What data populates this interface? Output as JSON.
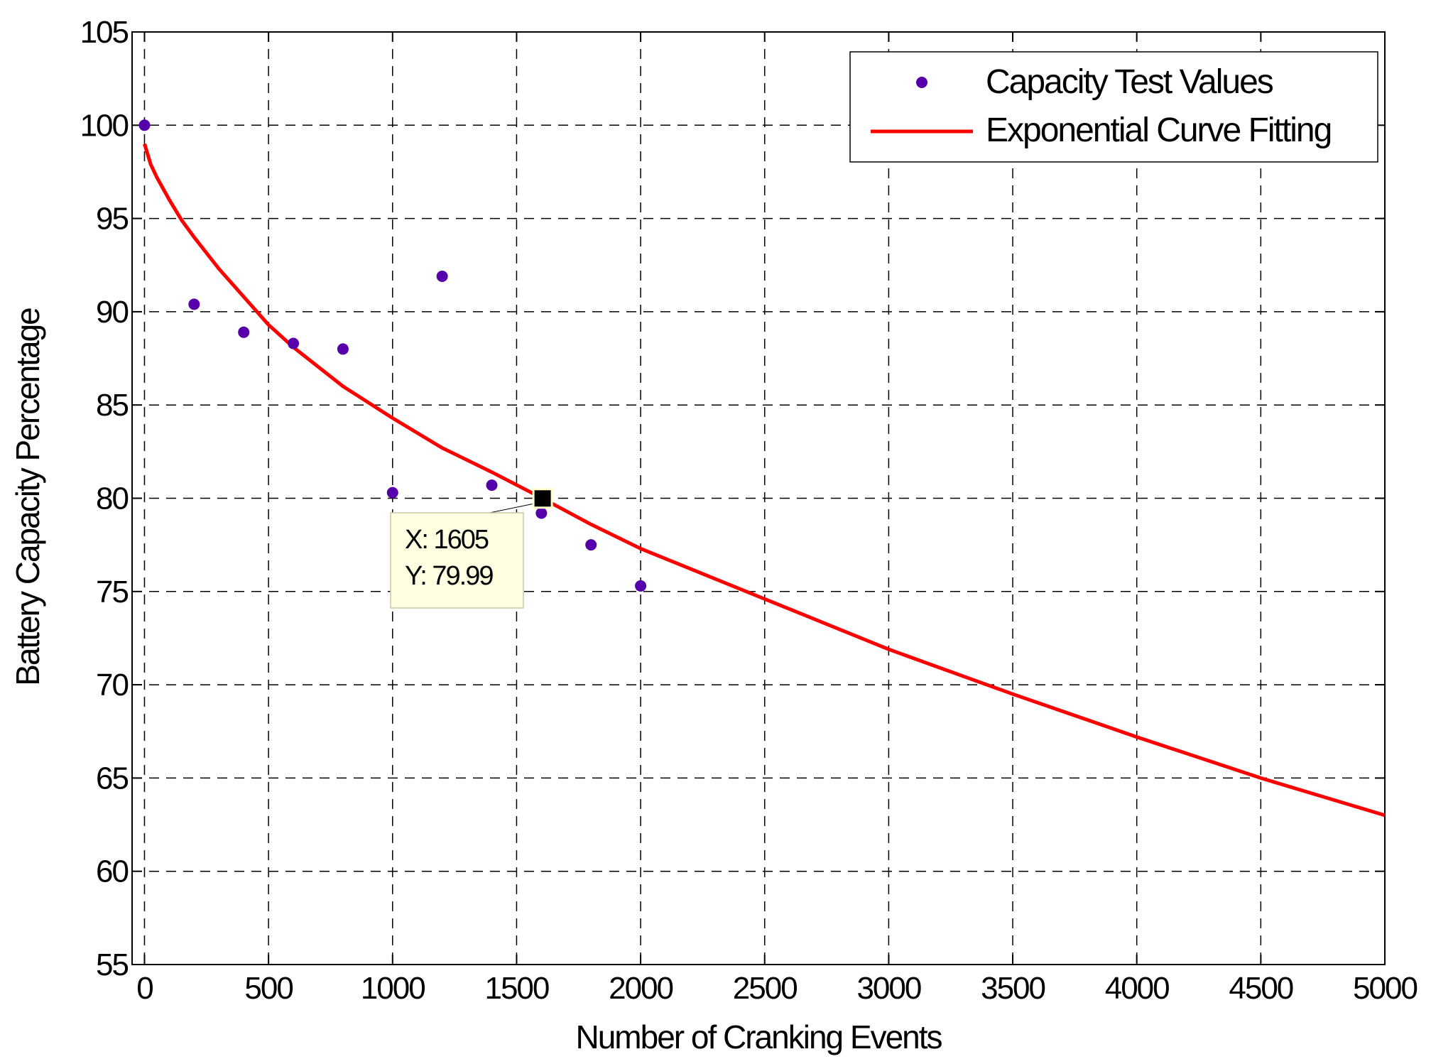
{
  "chart_data": {
    "type": "scatter",
    "title": "",
    "xlabel": "Number of Cranking Events",
    "ylabel": "Battery Capacity Percentage",
    "xlim": [
      -50,
      5000
    ],
    "ylim": [
      55,
      105
    ],
    "xticks": [
      0,
      500,
      1000,
      1500,
      2000,
      2500,
      3000,
      3500,
      4000,
      4500,
      5000
    ],
    "xtick_labels": [
      "0",
      "500",
      "1000",
      "1500",
      "2000",
      "2500",
      "3000",
      "3500",
      "4000",
      "4500",
      "5000"
    ],
    "yticks": [
      55,
      60,
      65,
      70,
      75,
      80,
      85,
      90,
      95,
      100,
      105
    ],
    "ytick_labels": [
      "55",
      "60",
      "65",
      "70",
      "75",
      "80",
      "85",
      "90",
      "95",
      "100",
      "105"
    ],
    "grid": true,
    "legend_position": "top-right",
    "series": [
      {
        "name": "Capacity Test Values",
        "kind": "scatter",
        "color": "#5500aa",
        "x": [
          0,
          200,
          400,
          600,
          800,
          1000,
          1200,
          1400,
          1600,
          1800,
          2000
        ],
        "y": [
          100,
          90.4,
          88.9,
          88.3,
          88.0,
          80.3,
          91.9,
          80.7,
          79.2,
          77.5,
          75.3
        ]
      },
      {
        "name": "Exponential Curve Fitting",
        "kind": "line",
        "color": "#ff0000",
        "x": [
          0,
          25,
          50,
          100,
          150,
          200,
          300,
          400,
          500,
          600,
          800,
          1000,
          1200,
          1400,
          1605,
          1800,
          2000,
          2500,
          3000,
          3500,
          4000,
          4500,
          5000
        ],
        "y": [
          99.0,
          97.9,
          97.2,
          96.0,
          94.9,
          94.0,
          92.3,
          90.8,
          89.3,
          88.1,
          86.0,
          84.3,
          82.7,
          81.4,
          79.99,
          78.6,
          77.3,
          74.6,
          71.9,
          69.5,
          67.2,
          65.0,
          63.0
        ]
      }
    ],
    "datatip": {
      "x_label": "X: 1605",
      "y_label": "Y: 79.99",
      "x": 1605,
      "y": 79.99
    }
  }
}
